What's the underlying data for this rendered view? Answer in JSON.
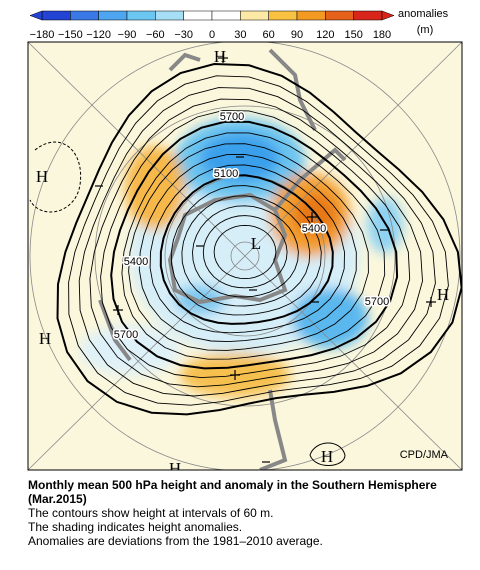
{
  "colorbar": {
    "title": "anomalies",
    "unit": "(m)",
    "labels": [
      "−180",
      "−150",
      "−120",
      "−90",
      "−60",
      "−30",
      "0",
      "30",
      "60",
      "90",
      "120",
      "150",
      "180"
    ]
  },
  "map": {
    "contour_labels": [
      "5700",
      "5100",
      "5400",
      "5400",
      "5700",
      "5700"
    ],
    "highs": [
      "H",
      "H",
      "H",
      "H",
      "H",
      "H"
    ],
    "lows": [
      "L"
    ],
    "credit": "CPD/JMA"
  },
  "caption": {
    "title": "Monthly mean 500 hPa height and anomaly in the Southern Hemisphere (Mar.2015)",
    "lines": [
      "The contours show height at intervals of 60 m.",
      "The shading indicates height anomalies.",
      "Anomalies are deviations from the 1981–2010 average."
    ]
  }
}
